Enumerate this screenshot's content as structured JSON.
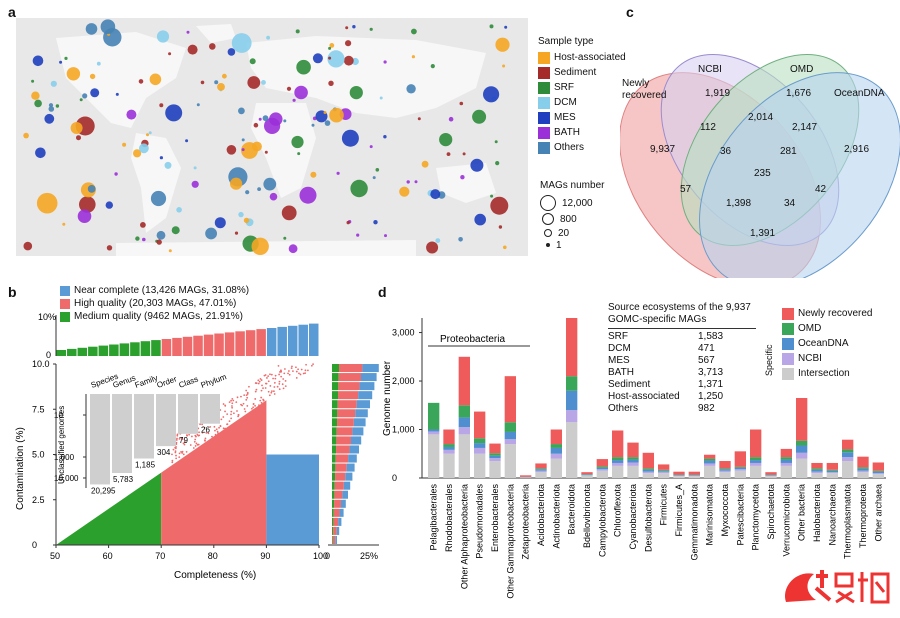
{
  "panels": {
    "a": "a",
    "b": "b",
    "c": "c",
    "d": "d"
  },
  "colors": {
    "host": "#f5a623",
    "sediment": "#a52a2a",
    "srf": "#2e8b3a",
    "dcm": "#87ceeb",
    "mes": "#1f3fbf",
    "bath": "#9b30d9",
    "others": "#4682b4",
    "near": "#5b9bd5",
    "high": "#ef6b6b",
    "medium": "#2ca02c",
    "newly": "#ef5a5a",
    "omd": "#3aa65a",
    "oceandna": "#4f8fd0",
    "ncbi": "#b9a6e6",
    "intersection": "#cccccc",
    "venn_newly": "#f4b6b6",
    "venn_ncbi": "#d9d0f0",
    "venn_omd": "#b7e0c0",
    "venn_ocean": "#b7d3ee"
  },
  "map_legend": {
    "title": "Sample type",
    "items": [
      {
        "label": "Host-associated",
        "color": "#f5a623"
      },
      {
        "label": "Sediment",
        "color": "#a52a2a"
      },
      {
        "label": "SRF",
        "color": "#2e8b3a"
      },
      {
        "label": "DCM",
        "color": "#87ceeb"
      },
      {
        "label": "MES",
        "color": "#1f3fbf"
      },
      {
        "label": "BATH",
        "color": "#9b30d9"
      },
      {
        "label": "Others",
        "color": "#4682b4"
      }
    ],
    "mags_title": "MAGs number",
    "mags": [
      "12,000",
      "800",
      "20",
      "1"
    ]
  },
  "panel_b": {
    "legend": [
      {
        "label": "Near complete (13,426 MAGs, 31.08%)",
        "color": "#5b9bd5"
      },
      {
        "label": "High quality (20,303 MAGs, 47.01%)",
        "color": "#ef6b6b"
      },
      {
        "label": "Medium quality (9462 MAGs, 21.91%)",
        "color": "#2ca02c"
      }
    ],
    "top_axis_labels": [
      "10%",
      "0"
    ],
    "y_label": "Contamination (%)",
    "y_ticks": [
      "10.0",
      "7.5",
      "5.0",
      "2.5",
      "0"
    ],
    "x_label": "Completeness (%)",
    "x_ticks": [
      "50",
      "60",
      "70",
      "80",
      "90",
      "100"
    ],
    "right_axis": [
      "0",
      "25%"
    ],
    "inset_ylabel": "Unclassified genomes",
    "inset_yticks": [
      "10",
      "1,000",
      "10,000"
    ],
    "inset_ranks": [
      {
        "rank": "Species",
        "value": "20,295"
      },
      {
        "rank": "Genus",
        "value": "5,783"
      },
      {
        "rank": "Family",
        "value": "1,185"
      },
      {
        "rank": "Order",
        "value": "304"
      },
      {
        "rank": "Class",
        "value": "79"
      },
      {
        "rank": "Phylum",
        "value": "26"
      }
    ]
  },
  "venn": {
    "labels": {
      "newly": "Newly\nrecovered",
      "ncbi": "NCBI",
      "omd": "OMD",
      "ocean": "OceanDNA"
    },
    "values": {
      "ncbi_only": "1,919",
      "omd_only": "1,676",
      "newly_only": "9,937",
      "ocean_only": "2,916",
      "newly_ncbi": "112",
      "ncbi_omd": "2,014",
      "omd_ocean": "2,147",
      "newly_ncbi_omd": "36",
      "ncbi_omd_ocean": "281",
      "all": "235",
      "newly_ocean": "1,391",
      "newly_omd": "57",
      "newly_omd_ocean": "1,398",
      "newly_ncbi_ocean": "34",
      "ncbi_ocean": "42"
    }
  },
  "panel_d": {
    "y_label": "Genome number",
    "y_ticks": [
      "3,000",
      "2,000",
      "1,000",
      "0"
    ],
    "proteobacteria": "Proteobacteria",
    "source_title": "Source ecosystems of the 9,937\nGOMC-specific MAGs",
    "sources": [
      {
        "k": "SRF",
        "v": "1,583"
      },
      {
        "k": "DCM",
        "v": "471"
      },
      {
        "k": "MES",
        "v": "567"
      },
      {
        "k": "BATH",
        "v": "3,713"
      },
      {
        "k": "Sediment",
        "v": "1,371"
      },
      {
        "k": "Host-associated",
        "v": "1,250"
      },
      {
        "k": "Others",
        "v": "982"
      }
    ],
    "legend": [
      {
        "label": "Newly recovered",
        "color": "#ef5a5a"
      },
      {
        "label": "OMD",
        "color": "#3aa65a"
      },
      {
        "label": "OceanDNA",
        "color": "#4f8fd0"
      },
      {
        "label": "NCBI",
        "color": "#b9a6e6"
      },
      {
        "label": "Intersection",
        "color": "#cccccc"
      }
    ],
    "specific": "Specific"
  },
  "chart_data": [
    {
      "type": "bar",
      "title": "",
      "xlabel": "",
      "ylabel": "Genome number",
      "ylim": [
        0,
        3300
      ],
      "categories": [
        "Pelagibacterales",
        "Rhodobacterales",
        "Other Alphaproteobacteria",
        "Pseudomonadales",
        "Enterobacterales",
        "Other Gammaproteobacteria",
        "Zetaproteobacteria",
        "Acidobacteriota",
        "Actinobacteriota",
        "Bacteroidota",
        "Bdellovibrionota",
        "Campylobacterota",
        "Chloroflexota",
        "Cyanobacteriota",
        "Desulfobacterota",
        "Firmicutes",
        "Firmicutes_A",
        "Gemmatimonadota",
        "Marinisomatota",
        "Myxococcota",
        "Patescibacteria",
        "Planctomycetota",
        "Spirochaetota",
        "Verrucomicrobiota",
        "Other bacteria",
        "Halobacteriota",
        "Nanoarchaeota",
        "Thermoplasmatota",
        "Thermoproteota",
        "Other archaea"
      ],
      "series": [
        {
          "name": "Intersection",
          "values": [
            900,
            500,
            900,
            500,
            350,
            700,
            10,
            120,
            400,
            1150,
            50,
            150,
            250,
            250,
            100,
            100,
            40,
            40,
            250,
            120,
            150,
            250,
            40,
            250,
            400,
            100,
            100,
            350,
            120,
            80
          ]
        },
        {
          "name": "NCBI",
          "values": [
            60,
            80,
            150,
            120,
            60,
            100,
            5,
            30,
            100,
            250,
            10,
            30,
            60,
            70,
            30,
            30,
            10,
            10,
            50,
            30,
            30,
            60,
            10,
            60,
            120,
            30,
            20,
            80,
            30,
            20
          ]
        },
        {
          "name": "OceanDNA",
          "values": [
            40,
            60,
            200,
            100,
            50,
            150,
            5,
            30,
            120,
            400,
            10,
            30,
            60,
            60,
            40,
            20,
            10,
            10,
            60,
            30,
            30,
            60,
            10,
            70,
            150,
            40,
            30,
            100,
            40,
            30
          ]
        },
        {
          "name": "OMD",
          "values": [
            550,
            60,
            250,
            100,
            50,
            200,
            5,
            20,
            80,
            300,
            10,
            30,
            60,
            50,
            30,
            20,
            10,
            10,
            40,
            20,
            20,
            60,
            10,
            50,
            100,
            30,
            20,
            60,
            30,
            20
          ]
        },
        {
          "name": "Newly recovered",
          "values": [
            0,
            300,
            1000,
            550,
            200,
            950,
            30,
            100,
            300,
            1200,
            40,
            150,
            550,
            300,
            320,
            110,
            60,
            60,
            80,
            150,
            320,
            570,
            50,
            170,
            880,
            110,
            140,
            200,
            220,
            170
          ]
        }
      ]
    },
    {
      "type": "bar",
      "title": "",
      "xlabel": "",
      "ylabel": "Unclassified genomes",
      "categories": [
        "Species",
        "Genus",
        "Family",
        "Order",
        "Class",
        "Phylum"
      ],
      "values": [
        20295,
        5783,
        1185,
        304,
        79,
        26
      ]
    }
  ]
}
